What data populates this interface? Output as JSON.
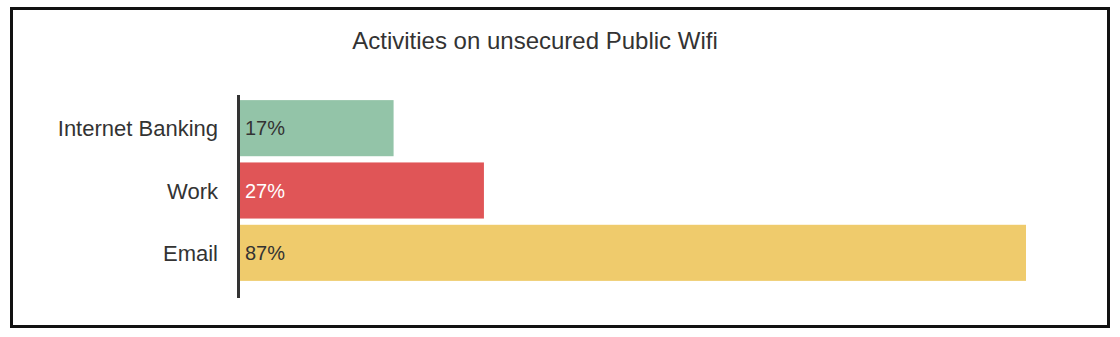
{
  "chart_data": {
    "type": "bar",
    "orientation": "horizontal",
    "title": "Activities on unsecured Public Wifi",
    "categories": [
      "Internet Banking",
      "Work",
      "Email"
    ],
    "values": [
      17,
      27,
      87
    ],
    "value_labels": [
      "17%",
      "27%",
      "87%"
    ],
    "colors": [
      "#93c4a8",
      "#e05557",
      "#efcb6c"
    ],
    "xlim": [
      0,
      87
    ],
    "data_labels": true,
    "tick_labels": false,
    "grid": false
  }
}
